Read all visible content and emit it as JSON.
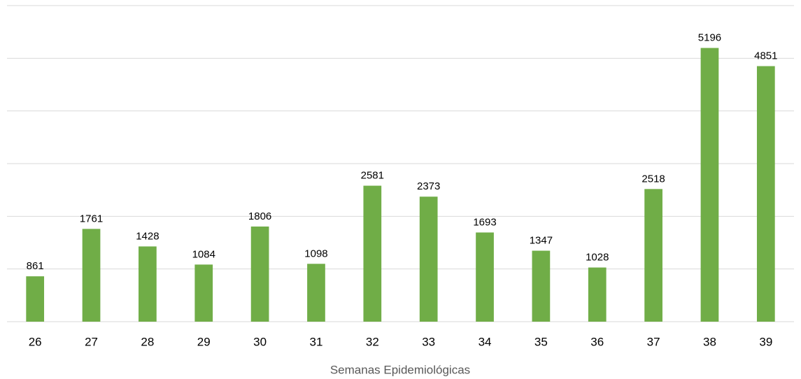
{
  "chart_data": {
    "type": "bar",
    "x_label": "Semanas Epidemiológicas",
    "categories": [
      "26",
      "27",
      "28",
      "29",
      "30",
      "31",
      "32",
      "33",
      "34",
      "35",
      "36",
      "37",
      "38",
      "39"
    ],
    "values": [
      861,
      1761,
      1428,
      1084,
      1806,
      1098,
      2581,
      2373,
      1693,
      1347,
      1028,
      2518,
      5196,
      4851
    ],
    "color": "#70ad47",
    "ylim": [
      0,
      6000
    ],
    "yticks": [
      0,
      1000,
      2000,
      3000,
      4000,
      5000,
      6000
    ],
    "grid": true
  }
}
